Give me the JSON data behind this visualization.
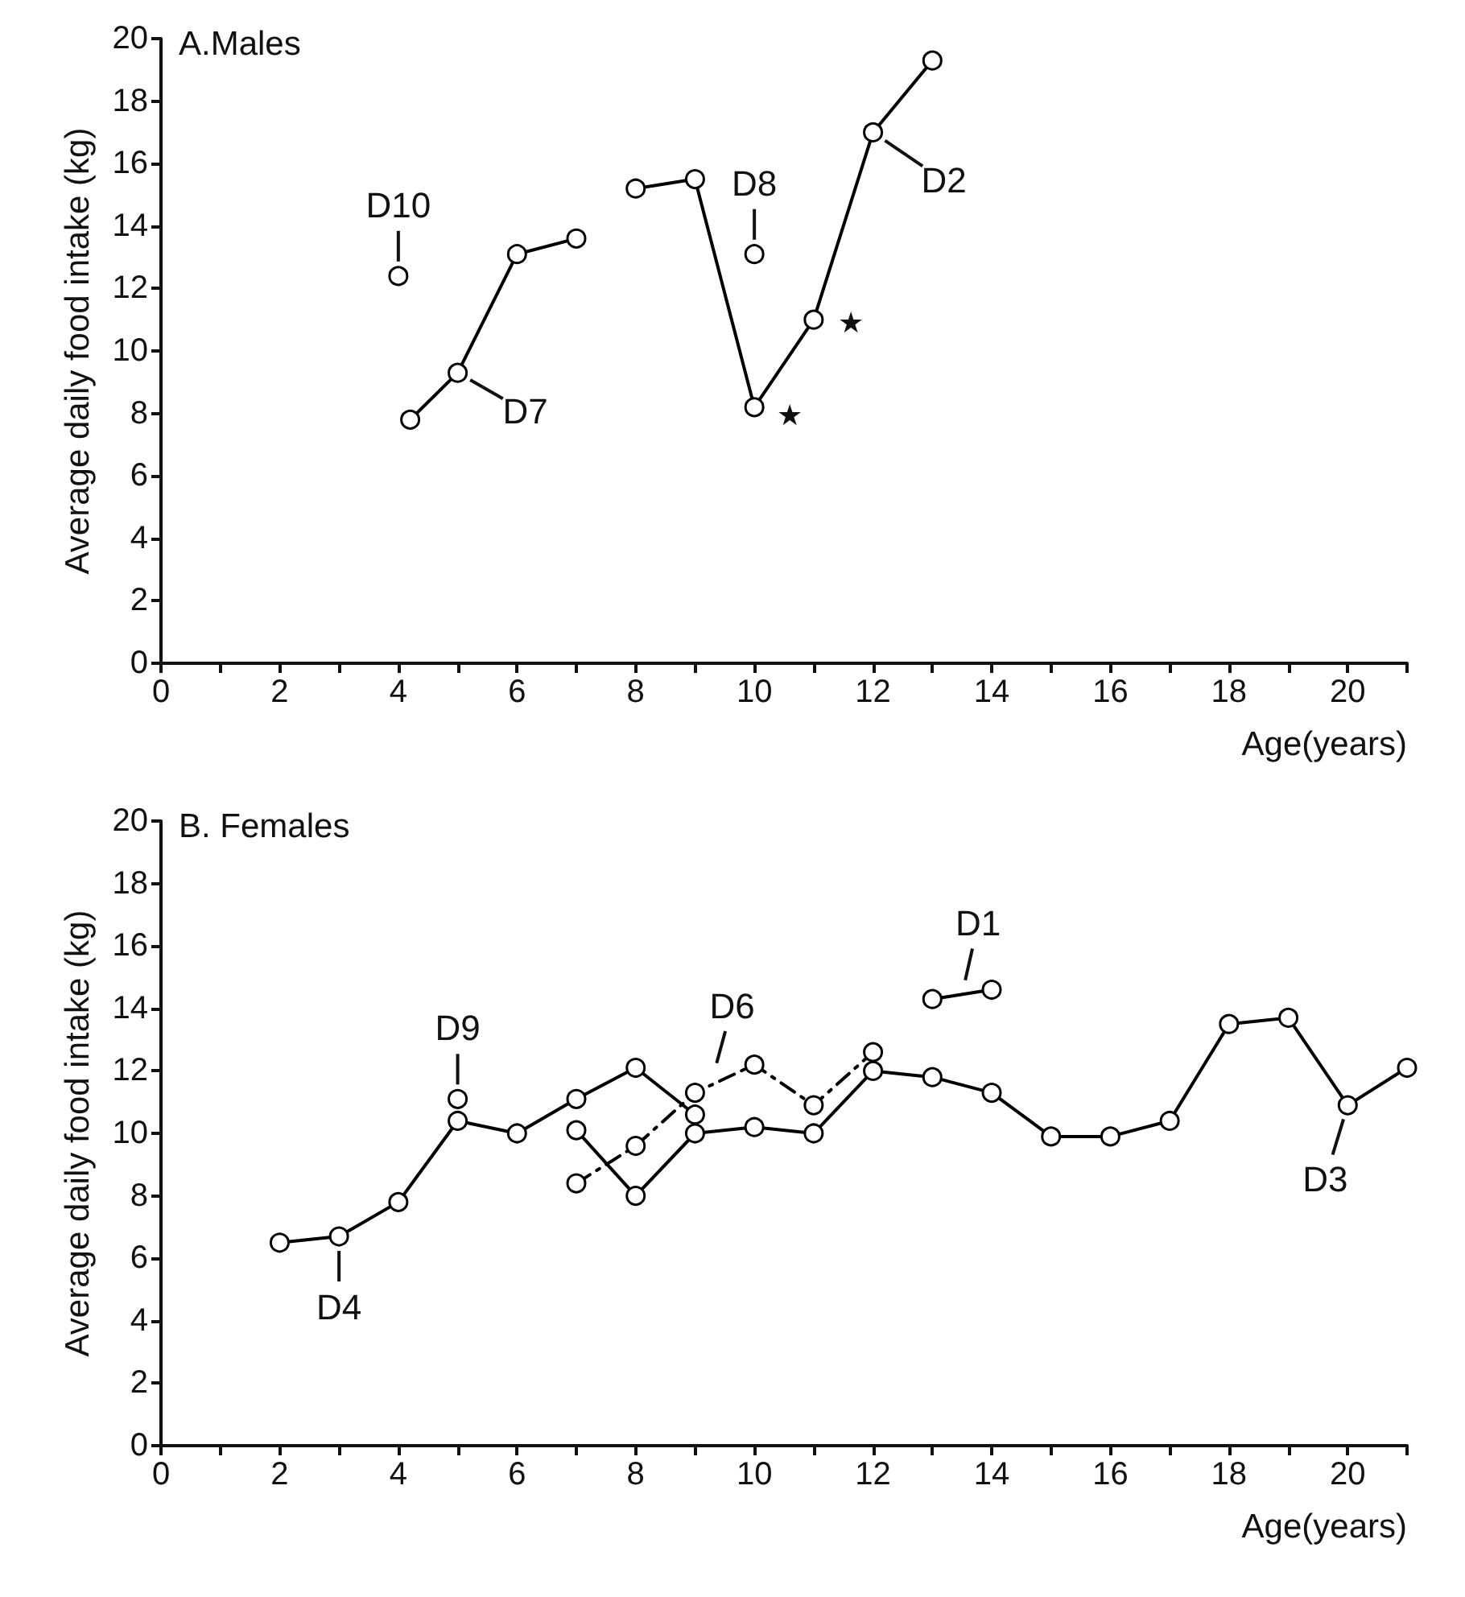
{
  "chart_data": [
    {
      "type": "line",
      "title": "A.Males",
      "xlabel": "Age(years)",
      "ylabel": "Average daily food intake (kg)",
      "xlim": [
        0,
        21
      ],
      "ylim": [
        0,
        20
      ],
      "xticks": [
        0,
        {
          "value": 1,
          "label": null
        },
        2,
        {
          "value": 3,
          "label": null
        },
        4,
        {
          "value": 5,
          "label": null
        },
        6,
        {
          "value": 7,
          "label": null
        },
        8,
        {
          "value": 9,
          "label": null
        },
        10,
        {
          "value": 11,
          "label": null
        },
        12,
        {
          "value": 13,
          "label": null
        },
        14,
        {
          "value": 15,
          "label": null
        },
        16,
        {
          "value": 17,
          "label": null
        },
        18,
        {
          "value": 19,
          "label": null
        },
        20,
        {
          "value": 21,
          "label": null
        }
      ],
      "yticks": [
        0,
        2,
        4,
        6,
        8,
        10,
        12,
        14,
        16,
        18,
        20
      ],
      "grid": false,
      "marker": "circle",
      "line_style": "solid",
      "series": [
        {
          "color": "#000000",
          "x": [
            4
          ],
          "values": [
            12.4
          ]
        },
        {
          "color": "#000000",
          "x": [
            4.2,
            5,
            6,
            7
          ],
          "values": [
            7.8,
            9.3,
            13.1,
            13.6
          ]
        },
        {
          "color": "#000000",
          "x": [
            8,
            9,
            10,
            11,
            12,
            13
          ],
          "values": [
            15.2,
            15.5,
            8.2,
            11.0,
            17.0,
            19.3
          ]
        },
        {
          "color": "#000000",
          "x": [
            10
          ],
          "values": [
            13.1
          ]
        }
      ],
      "annotations": [
        {
          "text": "D10",
          "x": 4,
          "y": 12.4
        },
        {
          "text": "D7",
          "x": 5,
          "y": 9.3
        },
        {
          "text": "D8",
          "x": 10,
          "y": 13.1
        },
        {
          "text": "D2",
          "x": 12,
          "y": 17.0
        },
        {
          "text": "★",
          "x": 10,
          "y": 8.2
        },
        {
          "text": "★",
          "x": 11,
          "y": 11.0
        }
      ]
    },
    {
      "type": "line",
      "title": "B. Females",
      "xlabel": "Age(years)",
      "ylabel": "Average daily food intake (kg)",
      "xlim": [
        0,
        21
      ],
      "ylim": [
        0,
        20
      ],
      "xticks": [
        0,
        {
          "value": 1,
          "label": null
        },
        2,
        {
          "value": 3,
          "label": null
        },
        4,
        {
          "value": 5,
          "label": null
        },
        6,
        {
          "value": 7,
          "label": null
        },
        8,
        {
          "value": 9,
          "label": null
        },
        10,
        {
          "value": 11,
          "label": null
        },
        12,
        {
          "value": 13,
          "label": null
        },
        14,
        {
          "value": 15,
          "label": null
        },
        16,
        {
          "value": 17,
          "label": null
        },
        18,
        {
          "value": 19,
          "label": null
        },
        20,
        {
          "value": 21,
          "label": null
        }
      ],
      "yticks": [
        0,
        2,
        4,
        6,
        8,
        10,
        12,
        14,
        16,
        18,
        20
      ],
      "grid": false,
      "marker": "circle",
      "line_style": "solid",
      "series": [
        {
          "color": "#000000",
          "x": [
            2,
            3,
            4,
            5,
            6,
            7,
            8,
            9
          ],
          "values": [
            6.5,
            6.7,
            7.8,
            10.4,
            10.0,
            11.1,
            12.1,
            10.6
          ]
        },
        {
          "color": "#000000",
          "x": [
            5
          ],
          "values": [
            11.1
          ]
        },
        {
          "color": "#000000",
          "x": [
            7,
            8,
            9,
            10,
            11,
            12,
            13,
            14,
            15,
            16,
            17,
            18,
            19,
            20,
            21
          ],
          "values": [
            10.1,
            8.0,
            10.0,
            10.2,
            10.0,
            12.0,
            11.8,
            11.3,
            9.9,
            9.9,
            10.4,
            13.5,
            13.7,
            10.9,
            12.1
          ]
        },
        {
          "color": "#000000",
          "line_style": "dashed",
          "x": [
            7,
            8,
            9,
            10,
            11,
            12
          ],
          "values": [
            8.4,
            9.6,
            11.3,
            12.2,
            10.9,
            12.6
          ]
        },
        {
          "color": "#000000",
          "x": [
            13,
            14
          ],
          "values": [
            14.3,
            14.6
          ]
        }
      ],
      "annotations": [
        {
          "text": "D4",
          "x": 3,
          "y": 6.7
        },
        {
          "text": "D9",
          "x": 5,
          "y": 11.1
        },
        {
          "text": "D6",
          "x": 9.3,
          "y": 11.8
        },
        {
          "text": "D1",
          "x": 13.5,
          "y": 14.45
        },
        {
          "text": "D3",
          "x": 20,
          "y": 10.9
        }
      ]
    }
  ]
}
